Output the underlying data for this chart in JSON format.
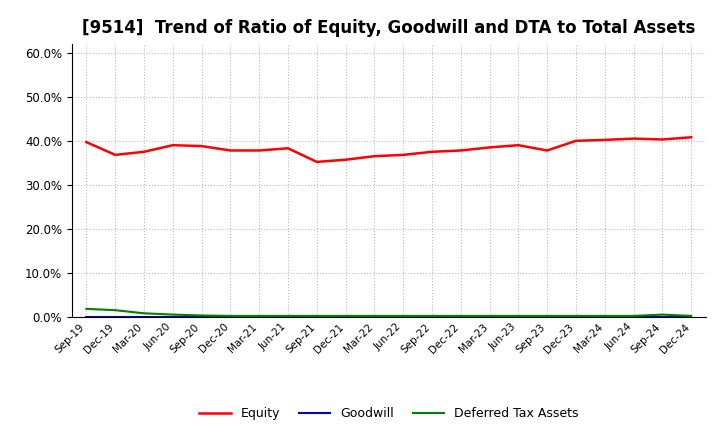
{
  "title": "[9514]  Trend of Ratio of Equity, Goodwill and DTA to Total Assets",
  "x_labels": [
    "Sep-19",
    "Dec-19",
    "Mar-20",
    "Jun-20",
    "Sep-20",
    "Dec-20",
    "Mar-21",
    "Jun-21",
    "Sep-21",
    "Dec-21",
    "Mar-22",
    "Jun-22",
    "Sep-22",
    "Dec-22",
    "Mar-23",
    "Jun-23",
    "Sep-23",
    "Dec-23",
    "Mar-24",
    "Jun-24",
    "Sep-24",
    "Dec-24"
  ],
  "equity": [
    0.397,
    0.368,
    0.375,
    0.39,
    0.388,
    0.378,
    0.378,
    0.383,
    0.352,
    0.357,
    0.365,
    0.368,
    0.375,
    0.378,
    0.385,
    0.39,
    0.378,
    0.4,
    0.402,
    0.405,
    0.403,
    0.408
  ],
  "goodwill": [
    0.0,
    0.0,
    0.0,
    0.0,
    0.0,
    0.0,
    0.0,
    0.0,
    0.0,
    0.0,
    0.0,
    0.0,
    0.0,
    0.0,
    0.0,
    0.0,
    0.0,
    0.0,
    0.0,
    0.0,
    0.0,
    0.0
  ],
  "dta": [
    0.018,
    0.015,
    0.008,
    0.005,
    0.003,
    0.002,
    0.002,
    0.002,
    0.002,
    0.002,
    0.002,
    0.002,
    0.002,
    0.002,
    0.002,
    0.002,
    0.002,
    0.002,
    0.002,
    0.002,
    0.005,
    0.002
  ],
  "equity_color": "#ff0000",
  "goodwill_color": "#0000cd",
  "dta_color": "#008000",
  "ylim": [
    0.0,
    0.62
  ],
  "yticks": [
    0.0,
    0.1,
    0.2,
    0.3,
    0.4,
    0.5,
    0.6
  ],
  "background_color": "#ffffff",
  "grid_color": "#bbbbbb",
  "title_fontsize": 12,
  "legend_labels": [
    "Equity",
    "Goodwill",
    "Deferred Tax Assets"
  ]
}
